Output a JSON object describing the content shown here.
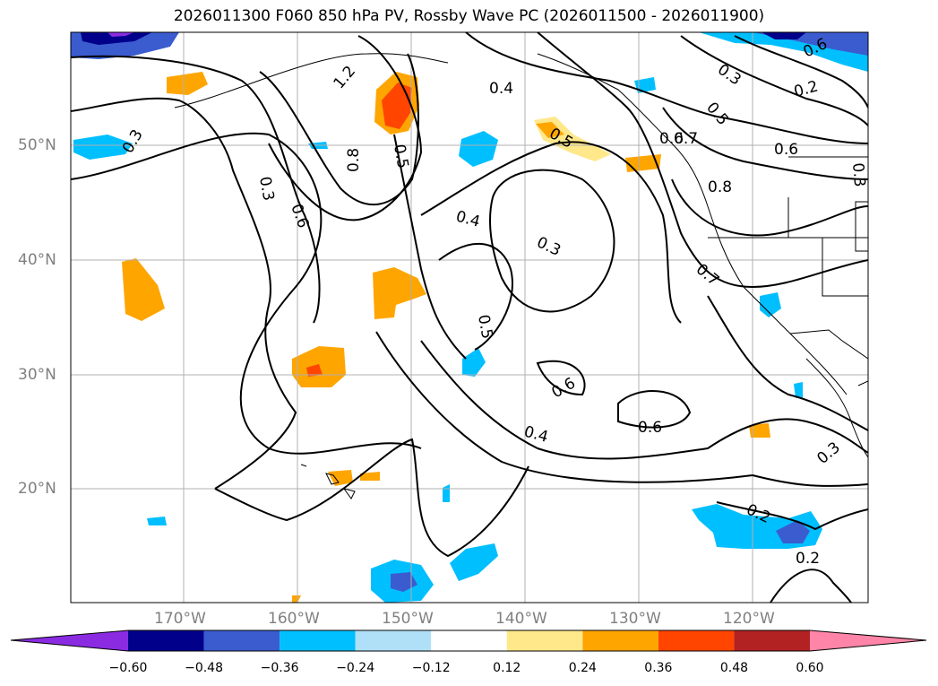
{
  "title": "2026011300 F060 850 hPa PV, Rossby Wave PC (2026011500 - 2026011900)",
  "lat_labels": [
    "50°N",
    "40°N",
    "30°N",
    "20°N"
  ],
  "lon_labels": [
    "170°W",
    "160°W",
    "150°W",
    "140°W",
    "130°W",
    "120°W"
  ],
  "contour_labels": [
    "0.3",
    "0.4",
    "0.5",
    "0.6",
    "0.3",
    "0.6",
    "0.8",
    "0.5",
    "0.4",
    "0.3",
    "0.5",
    "0.6",
    "0.6",
    "0.4",
    "0.6",
    "0.3",
    "0.2",
    "0.3",
    "0.5",
    "0.7",
    "0.8",
    "0.7",
    "0.2",
    "0.2",
    "0.3",
    "1.2",
    "0.6"
  ],
  "colorbar": {
    "ticks": [
      "−0.60",
      "−0.48",
      "−0.36",
      "−0.24",
      "−0.12",
      "0.12",
      "0.24",
      "0.36",
      "0.48",
      "0.60"
    ],
    "colors": [
      "#8a2be2",
      "#00008b",
      "#3a5ccf",
      "#00bfff",
      "#b0e0f8",
      "#ffffff",
      "#ffe88a",
      "#ffa500",
      "#ff4500",
      "#b22222",
      "#ff85a8"
    ]
  }
}
